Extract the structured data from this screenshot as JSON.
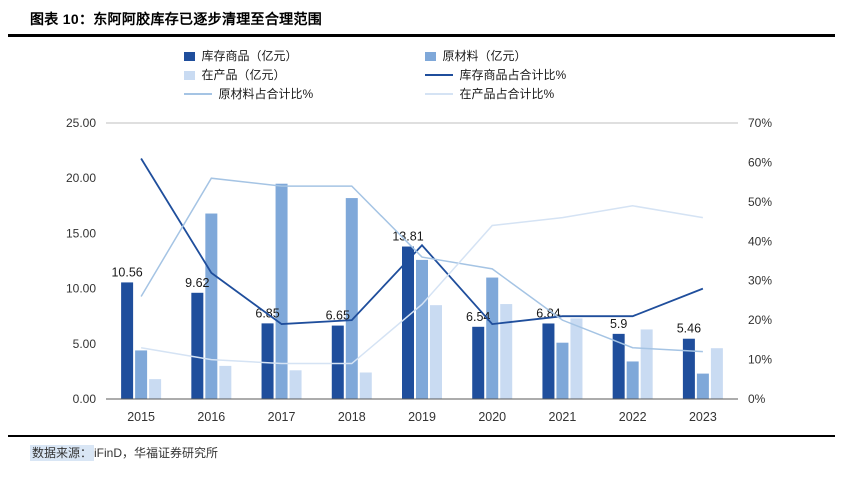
{
  "header": {
    "title": "图表 10：东阿阿胶库存已逐步清理至合理范围"
  },
  "footer": {
    "source_label": "数据来源：",
    "source_text": "iFinD，华福证券研究所"
  },
  "chart_data": {
    "type": "bar",
    "subtype": "grouped-bars-with-percentage-lines",
    "title": "东阿阿胶库存已逐步清理至合理范围",
    "categories": [
      "2015",
      "2016",
      "2017",
      "2018",
      "2019",
      "2020",
      "2021",
      "2022",
      "2023"
    ],
    "bar_series": [
      {
        "id": "inventory-goods",
        "label": "库存商品（亿元）",
        "color": "#1F4E9C",
        "values": [
          10.56,
          9.62,
          6.85,
          6.65,
          13.81,
          6.54,
          6.84,
          5.9,
          5.46
        ],
        "value_labels": [
          "10.56",
          "9.62",
          "6.85",
          "6.65",
          "13.81",
          "6.54",
          "6.84",
          "5.9",
          "5.46"
        ]
      },
      {
        "id": "raw-materials",
        "label": "原材料（亿元）",
        "color": "#7FA8D9",
        "values": [
          4.4,
          16.8,
          19.5,
          18.2,
          12.6,
          11.0,
          5.1,
          3.4,
          2.3
        ]
      },
      {
        "id": "work-in-progress",
        "label": "在产品（亿元）",
        "color": "#C9DBF2",
        "values": [
          1.8,
          3.0,
          2.6,
          2.4,
          8.5,
          8.6,
          7.3,
          6.3,
          4.6
        ]
      }
    ],
    "line_series": [
      {
        "id": "inventory-goods-pct",
        "label": "库存商品占合计比%",
        "color": "#1F4E9C",
        "values": [
          61,
          32,
          19,
          20,
          39,
          19,
          21,
          21,
          28
        ]
      },
      {
        "id": "raw-materials-pct",
        "label": "原材料占合计比%",
        "color": "#A5C4E4",
        "values": [
          26,
          56,
          54,
          54,
          36,
          33,
          20,
          13,
          12
        ]
      },
      {
        "id": "work-in-progress-pct",
        "label": "在产品占合计比%",
        "color": "#D5E3F4",
        "values": [
          13,
          10,
          9,
          9,
          24,
          44,
          46,
          49,
          46
        ]
      }
    ],
    "left_axis": {
      "min": 0,
      "max": 25,
      "ticks": [
        "0.00",
        "5.00",
        "10.00",
        "15.00",
        "20.00",
        "25.00"
      ]
    },
    "right_axis": {
      "min": 0,
      "max": 70,
      "ticks": [
        "0%",
        "10%",
        "20%",
        "30%",
        "40%",
        "50%",
        "60%",
        "70%"
      ]
    },
    "grid": "top-border-only",
    "legend_position": "top-center"
  }
}
